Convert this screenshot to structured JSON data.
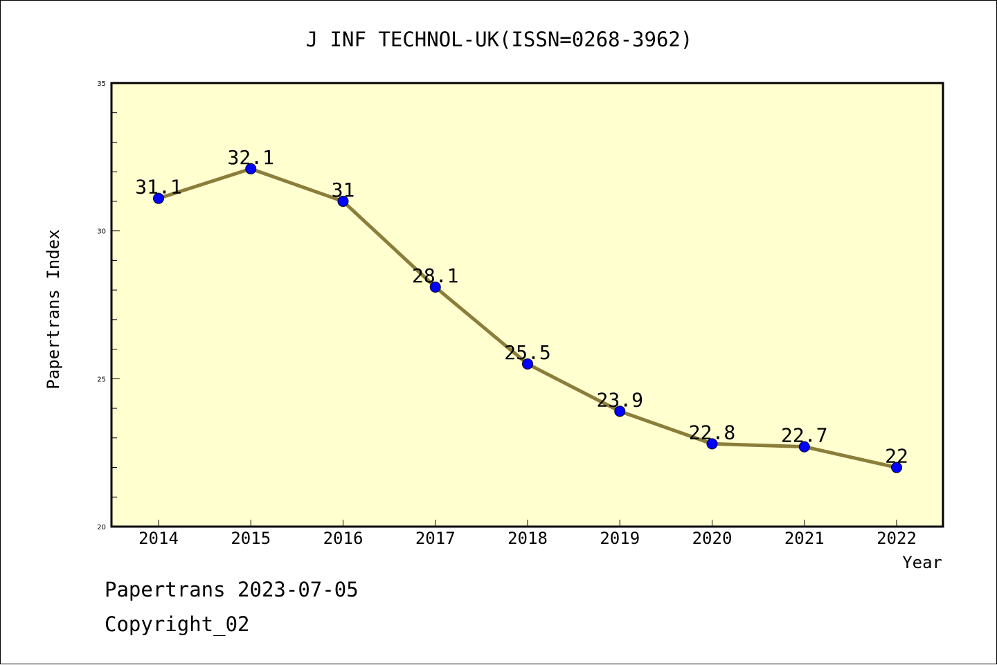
{
  "chart_data": {
    "type": "line",
    "title": "J INF TECHNOL-UK(ISSN=0268-3962)",
    "xlabel": "Year",
    "ylabel": "Papertrans Index",
    "categories": [
      "2014",
      "2015",
      "2016",
      "2017",
      "2018",
      "2019",
      "2020",
      "2021",
      "2022"
    ],
    "series": [
      {
        "values": [
          31.1,
          32.1,
          31,
          28.1,
          25.5,
          23.9,
          22.8,
          22.7,
          22
        ],
        "labels": [
          "31.1",
          "32.1",
          "31",
          "28.1",
          "25.5",
          "23.9",
          "22.8",
          "22.7",
          "22"
        ]
      }
    ],
    "ylim": [
      20,
      35
    ],
    "yticks": [
      "20",
      "25",
      "30",
      "35"
    ],
    "grid": false,
    "colors": {
      "plot_background": "#ffffd0",
      "line": "#8b7d3a",
      "marker": "#0000ff"
    }
  },
  "footer": {
    "source": "Papertrans 2023-07-05",
    "copyright": "Copyright_02"
  }
}
